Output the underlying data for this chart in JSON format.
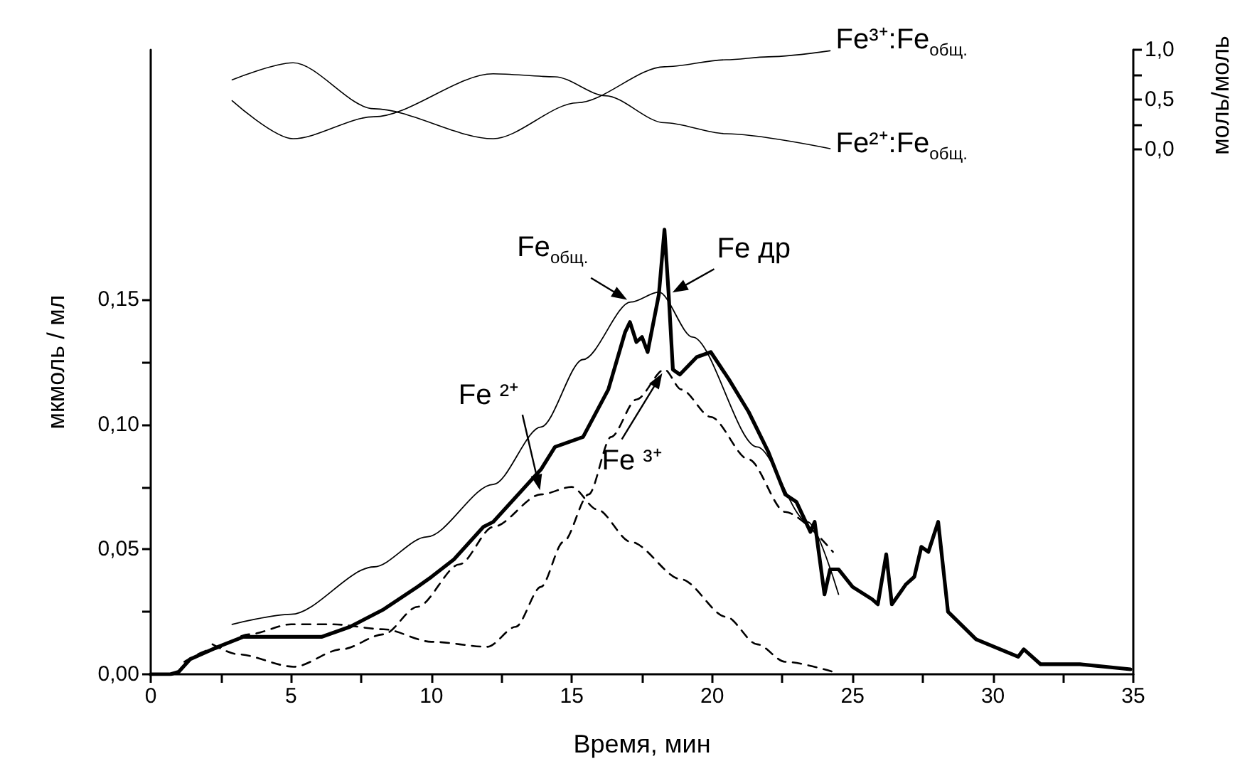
{
  "chart_data": {
    "type": "line",
    "xlabel": "Время, мин",
    "ylabel": "мкмоль / мл",
    "y2label": "моль/моль",
    "xlim": [
      0,
      35
    ],
    "xticks": [
      0,
      {
        "value": 2.5,
        "label": null
      },
      5,
      {
        "value": 7.5,
        "label": null
      },
      10,
      {
        "value": 12.5,
        "label": null
      },
      15,
      {
        "value": 17.5,
        "label": null
      },
      20,
      {
        "value": 22.5,
        "label": null
      },
      25,
      {
        "value": 27.5,
        "label": null
      },
      30,
      {
        "value": 32.5,
        "label": null
      },
      35
    ],
    "ylim": [
      0,
      0.25
    ],
    "yticks": [
      {
        "value": 0,
        "label": "0,00"
      },
      {
        "value": 0.025,
        "label": null
      },
      {
        "value": 0.05,
        "label": "0,05"
      },
      {
        "value": 0.075,
        "label": null
      },
      {
        "value": 0.1,
        "label": "0,10"
      },
      {
        "value": 0.125,
        "label": null
      },
      {
        "value": 0.15,
        "label": "0,15"
      }
    ],
    "y2lim": [
      -5.25,
      1.0
    ],
    "y2ticks": [
      {
        "value": 0,
        "label": "0,0"
      },
      {
        "value": 0.25,
        "label": null
      },
      {
        "value": 0.5,
        "label": "0,5"
      },
      {
        "value": 0.75,
        "label": null
      },
      {
        "value": 1.0,
        "label": "1,0"
      }
    ],
    "grid": false,
    "legend": false,
    "marker": "none",
    "series": [
      {
        "name": "Fe др",
        "color": "#000000",
        "line_style": "solid",
        "x": [
          0,
          0.7,
          1.0,
          1.4,
          2.4,
          3.3,
          5,
          6.1,
          7.1,
          8.3,
          9.5,
          10,
          10.8,
          11.85,
          12.2,
          13.9,
          14.4,
          15.4,
          16.3,
          16.9,
          17.07,
          17.3,
          17.5,
          17.7,
          18.1,
          18.3,
          18.45,
          18.6,
          18.85,
          19.45,
          19.95,
          20.6,
          21.3,
          22.0,
          22.6,
          23.0,
          23.5,
          23.65,
          24.0,
          24.2,
          24.5,
          25.0,
          25.7,
          25.9,
          26.2,
          26.4,
          26.9,
          27.2,
          27.45,
          27.7,
          28.05,
          28.4,
          29.4,
          30.9,
          31.1,
          31.7,
          33.1,
          34.9
        ],
        "values": [
          0,
          0,
          0.001,
          0.006,
          0.011,
          0.015,
          0.015,
          0.015,
          0.019,
          0.026,
          0.035,
          0.039,
          0.046,
          0.059,
          0.061,
          0.082,
          0.091,
          0.095,
          0.114,
          0.137,
          0.141,
          0.133,
          0.135,
          0.129,
          0.152,
          0.178,
          0.152,
          0.122,
          0.12,
          0.127,
          0.129,
          0.118,
          0.105,
          0.089,
          0.072,
          0.069,
          0.057,
          0.061,
          0.032,
          0.042,
          0.042,
          0.035,
          0.03,
          0.028,
          0.048,
          0.028,
          0.036,
          0.039,
          0.051,
          0.049,
          0.061,
          0.025,
          0.014,
          0.007,
          0.01,
          0.004,
          0.004,
          0.002
        ]
      },
      {
        "name": "Fe$_{общ.}$",
        "color": "#000000",
        "line_style": "solid",
        "x": [
          2.9,
          5,
          7.95,
          9.83,
          12.2,
          13.9,
          15.4,
          17.1,
          18.1,
          19.3,
          21.6,
          23.4,
          24.5
        ],
        "values": [
          0.02,
          0.024,
          0.043,
          0.055,
          0.076,
          0.099,
          0.126,
          0.149,
          0.153,
          0.135,
          0.091,
          0.061,
          0.032
        ]
      },
      {
        "name": "Fe ²⁺",
        "color": "#000000",
        "line_style": "dashed",
        "x": [
          2.2,
          3.1,
          5.1,
          6.8,
          8.3,
          9.5,
          11,
          12.2,
          13.9,
          15,
          15.9,
          17.1,
          18.9,
          20.5,
          21.6,
          22.6,
          24.3
        ],
        "values": [
          0.012,
          0.008,
          0.003,
          0.01,
          0.016,
          0.027,
          0.044,
          0.059,
          0.072,
          0.075,
          0.066,
          0.053,
          0.038,
          0.023,
          0.012,
          0.005,
          0.001
        ]
      },
      {
        "name": "Fe ³⁺",
        "color": "#000000",
        "line_style": "dashed",
        "x": [
          1.2,
          2.2,
          3.5,
          5,
          6.5,
          8.3,
          10,
          12,
          13,
          13.9,
          14.7,
          15.6,
          16.4,
          17.3,
          18.3,
          18.9,
          19.95,
          21.3,
          22.6,
          24.3
        ],
        "values": [
          0.005,
          0.01,
          0.016,
          0.02,
          0.02,
          0.018,
          0.013,
          0.011,
          0.019,
          0.035,
          0.053,
          0.072,
          0.095,
          0.11,
          0.122,
          0.114,
          0.103,
          0.086,
          0.065,
          0.049
        ]
      },
      {
        "name": "Fe³⁺:Fe$_{общ.}$",
        "color": "#000000",
        "line_style": "solid",
        "axis": "y2",
        "x": [
          2.9,
          5.07,
          7.95,
          12.2,
          15.2,
          18.3,
          20.5,
          22,
          24.2
        ],
        "values": [
          0.7,
          0.87,
          0.41,
          0.11,
          0.47,
          0.83,
          0.9,
          0.93,
          0.99
        ]
      },
      {
        "name": "Fe²⁺:Fe$_{общ.}$",
        "color": "#000000",
        "line_style": "solid",
        "axis": "y2",
        "x": [
          2.9,
          5.07,
          7.95,
          12.2,
          14.4,
          16.2,
          18.3,
          20.5,
          24.2
        ],
        "values": [
          0.49,
          0.11,
          0.33,
          0.76,
          0.73,
          0.54,
          0.27,
          0.16,
          0.01
        ]
      }
    ]
  }
}
